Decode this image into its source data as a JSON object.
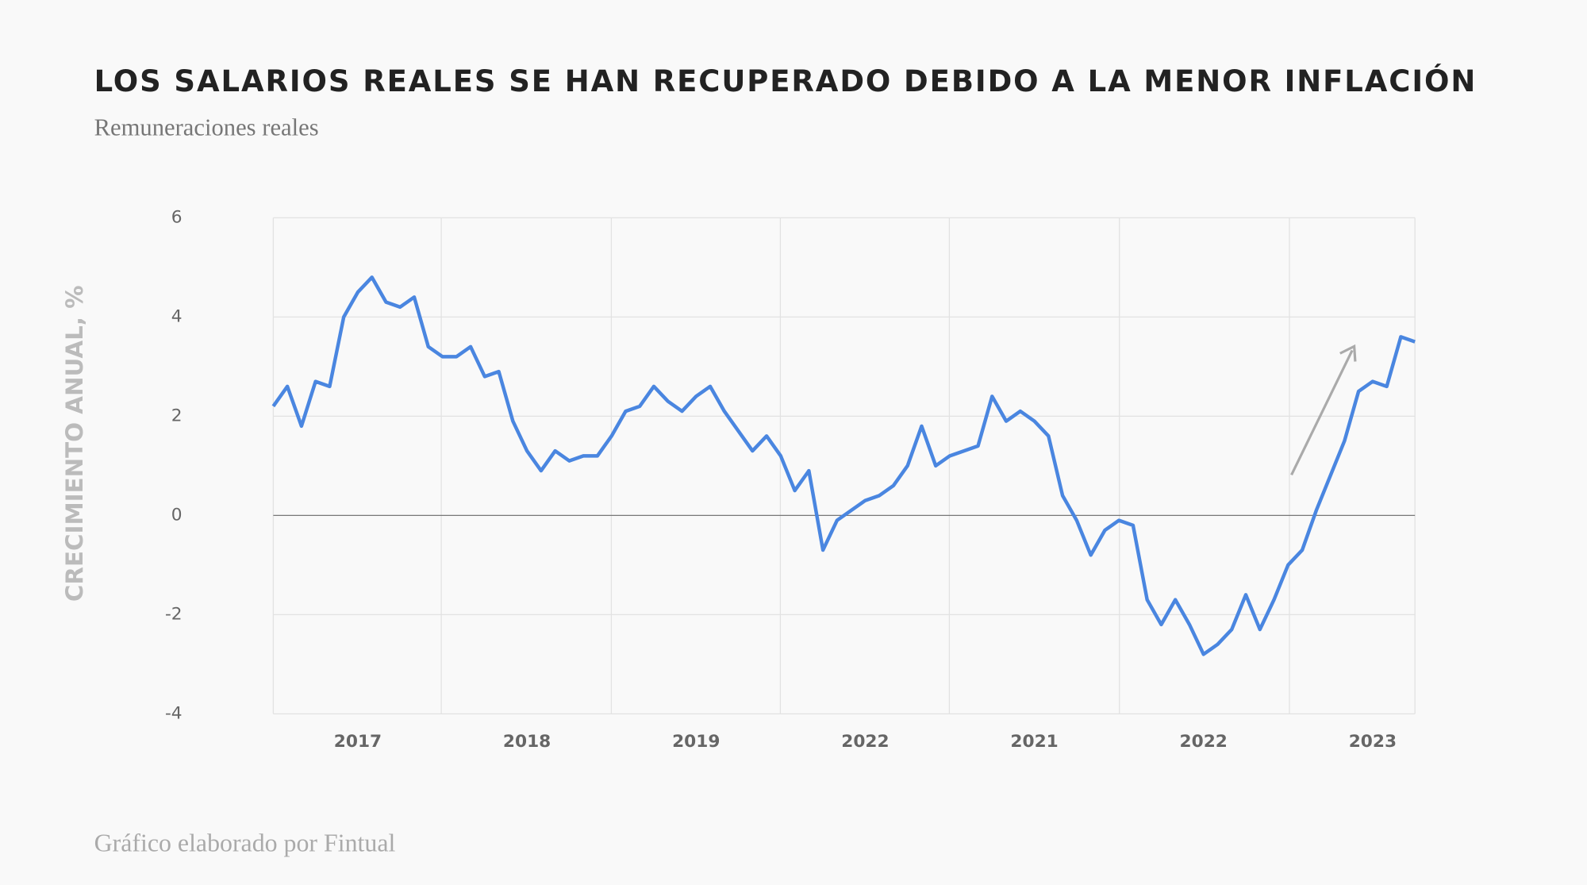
{
  "chart_data": {
    "type": "line",
    "title": "LOS SALARIOS REALES SE HAN RECUPERADO DEBIDO A LA MENOR INFLACIÓN",
    "subtitle": "Remuneraciones reales",
    "y_label": "CRECIMIENTO ANUAL, %",
    "source": "Gráfico elaborado por Fintual",
    "categories": [
      null,
      null,
      null,
      null,
      null,
      null,
      "2017",
      null,
      null,
      null,
      null,
      null,
      null,
      null,
      null,
      null,
      null,
      null,
      "2018",
      null,
      null,
      null,
      null,
      null,
      null,
      null,
      null,
      null,
      null,
      null,
      "2019",
      null,
      null,
      null,
      null,
      null,
      null,
      null,
      null,
      null,
      null,
      null,
      "2022",
      null,
      null,
      null,
      null,
      null,
      null,
      null,
      null,
      null,
      null,
      null,
      "2021",
      null,
      null,
      null,
      null,
      null,
      null,
      null,
      null,
      null,
      null,
      null,
      "2022",
      null,
      null,
      null,
      null,
      null,
      null,
      null,
      null,
      null,
      null,
      null,
      "2023",
      null,
      null,
      null
    ],
    "series": [
      {
        "name": "Remuneraciones reales",
        "color": "#4a86e0",
        "values": [
          2.2,
          2.6,
          1.8,
          2.7,
          2.6,
          4.0,
          4.5,
          4.8,
          4.3,
          4.2,
          4.4,
          3.4,
          3.2,
          3.2,
          3.4,
          2.8,
          2.9,
          1.9,
          1.3,
          0.9,
          1.3,
          1.1,
          1.2,
          1.2,
          1.6,
          2.1,
          2.2,
          2.6,
          2.3,
          2.1,
          2.4,
          2.6,
          2.1,
          1.7,
          1.3,
          1.6,
          1.2,
          0.5,
          0.9,
          -0.7,
          -0.1,
          0.1,
          0.3,
          0.4,
          0.6,
          1.0,
          1.8,
          1.0,
          1.2,
          1.3,
          1.4,
          2.4,
          1.9,
          2.1,
          1.9,
          1.6,
          0.4,
          -0.1,
          -0.8,
          -0.3,
          -0.1,
          -0.2,
          -1.7,
          -2.2,
          -1.7,
          -2.2,
          -2.8,
          -2.6,
          -2.3,
          -1.6,
          -2.3,
          -1.7,
          -1.0,
          -0.7,
          0.1,
          0.8,
          1.5,
          2.5,
          2.7,
          2.6,
          3.6,
          3.5
        ]
      }
    ],
    "ylim": [
      -4,
      6
    ],
    "yticks": [
      -4,
      -2,
      0,
      2,
      4,
      6
    ],
    "grid": true
  }
}
